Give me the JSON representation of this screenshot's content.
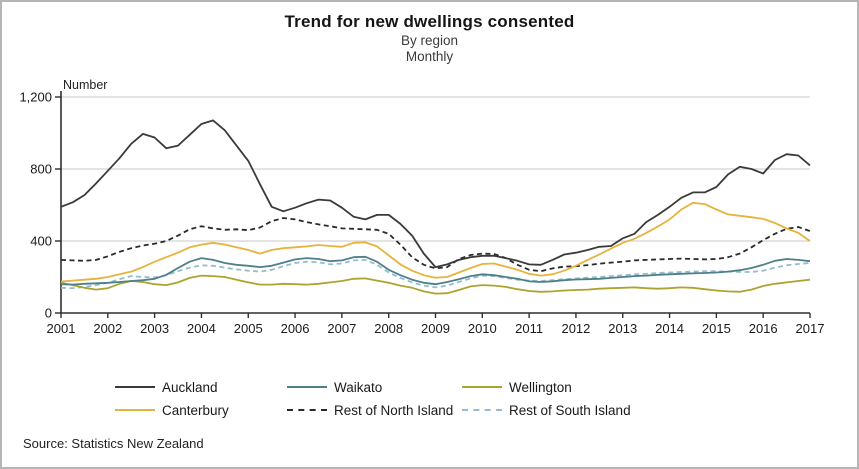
{
  "header": {
    "title": "Trend for new dwellings consented",
    "subtitle1": "By region",
    "subtitle2": "Monthly"
  },
  "footer": {
    "source": "Source: Statistics New Zealand"
  },
  "chart_data": {
    "type": "line",
    "title": "Trend for new dwellings consented",
    "subtitle": [
      "By region",
      "Monthly"
    ],
    "ylabel": "Number",
    "xlabel": "",
    "ylim": [
      0,
      1200
    ],
    "yticks": [
      0,
      400,
      800,
      1200
    ],
    "ytick_labels": [
      "0",
      "400",
      "800",
      "1,200"
    ],
    "xticks": [
      2001,
      2002,
      2003,
      2004,
      2005,
      2006,
      2007,
      2008,
      2009,
      2010,
      2011,
      2012,
      2013,
      2014,
      2015,
      2016,
      2017
    ],
    "grid": "horizontal",
    "legend_position": "bottom",
    "axis_color": "#2e2e2e",
    "grid_color": "#c9c9c9",
    "x": [
      2001,
      2001.25,
      2001.5,
      2001.75,
      2002,
      2002.25,
      2002.5,
      2002.75,
      2003,
      2003.25,
      2003.5,
      2003.75,
      2004,
      2004.25,
      2004.5,
      2004.75,
      2005,
      2005.25,
      2005.5,
      2005.75,
      2006,
      2006.25,
      2006.5,
      2006.75,
      2007,
      2007.25,
      2007.5,
      2007.75,
      2008,
      2008.25,
      2008.5,
      2008.75,
      2009,
      2009.25,
      2009.5,
      2009.75,
      2010,
      2010.25,
      2010.5,
      2010.75,
      2011,
      2011.25,
      2011.5,
      2011.75,
      2012,
      2012.25,
      2012.5,
      2012.75,
      2013,
      2013.25,
      2013.5,
      2013.75,
      2014,
      2014.25,
      2014.5,
      2014.75,
      2015,
      2015.25,
      2015.5,
      2015.75,
      2016,
      2016.25,
      2016.5,
      2016.75,
      2017
    ],
    "series": [
      {
        "name": "Auckland",
        "color": "#3a3a3a",
        "dash": false,
        "values": [
          590,
          615,
          655,
          720,
          790,
          860,
          940,
          995,
          975,
          915,
          930,
          990,
          1050,
          1070,
          1015,
          930,
          845,
          715,
          590,
          565,
          585,
          610,
          630,
          625,
          585,
          535,
          520,
          545,
          545,
          495,
          430,
          330,
          255,
          270,
          295,
          310,
          318,
          318,
          305,
          290,
          270,
          268,
          295,
          325,
          335,
          350,
          368,
          372,
          415,
          440,
          505,
          545,
          590,
          640,
          670,
          670,
          700,
          770,
          812,
          800,
          775,
          850,
          882,
          875,
          820
        ]
      },
      {
        "name": "Waikato",
        "color": "#4e7f8c",
        "dash": false,
        "values": [
          160,
          158,
          162,
          165,
          168,
          172,
          178,
          182,
          190,
          212,
          250,
          285,
          305,
          295,
          278,
          268,
          262,
          255,
          262,
          280,
          298,
          305,
          300,
          288,
          292,
          310,
          312,
          285,
          240,
          210,
          185,
          168,
          160,
          172,
          188,
          205,
          215,
          210,
          200,
          190,
          176,
          172,
          176,
          182,
          186,
          188,
          190,
          195,
          200,
          205,
          208,
          212,
          215,
          218,
          220,
          222,
          225,
          230,
          238,
          250,
          268,
          290,
          300,
          295,
          288
        ]
      },
      {
        "name": "Wellington",
        "color": "#ada32f",
        "dash": false,
        "values": [
          168,
          155,
          140,
          130,
          138,
          162,
          178,
          172,
          160,
          155,
          170,
          195,
          208,
          205,
          200,
          185,
          170,
          158,
          158,
          162,
          160,
          158,
          162,
          170,
          178,
          190,
          192,
          180,
          168,
          152,
          140,
          120,
          108,
          110,
          128,
          148,
          155,
          152,
          145,
          132,
          122,
          118,
          120,
          125,
          128,
          130,
          135,
          138,
          140,
          142,
          138,
          135,
          138,
          142,
          140,
          132,
          125,
          120,
          118,
          130,
          150,
          162,
          170,
          178,
          185
        ]
      },
      {
        "name": "Canterbury",
        "color": "#e6b33d",
        "dash": false,
        "values": [
          175,
          180,
          185,
          190,
          200,
          215,
          230,
          255,
          285,
          310,
          335,
          365,
          380,
          390,
          380,
          365,
          350,
          330,
          350,
          360,
          365,
          370,
          378,
          372,
          368,
          390,
          392,
          370,
          320,
          270,
          235,
          210,
          196,
          200,
          225,
          250,
          272,
          275,
          258,
          240,
          218,
          208,
          215,
          235,
          262,
          295,
          325,
          358,
          390,
          412,
          445,
          480,
          520,
          575,
          612,
          605,
          575,
          548,
          540,
          532,
          523,
          500,
          470,
          445,
          400
        ]
      },
      {
        "name": "Rest of North Island",
        "color": "#2a2a2a",
        "dash": true,
        "values": [
          295,
          292,
          290,
          295,
          315,
          340,
          360,
          375,
          385,
          400,
          430,
          465,
          482,
          470,
          462,
          465,
          460,
          475,
          510,
          528,
          520,
          505,
          492,
          482,
          470,
          468,
          465,
          462,
          440,
          380,
          310,
          268,
          248,
          255,
          300,
          322,
          330,
          328,
          305,
          268,
          240,
          232,
          248,
          258,
          260,
          266,
          274,
          280,
          285,
          292,
          295,
          298,
          300,
          302,
          300,
          298,
          300,
          310,
          330,
          365,
          405,
          440,
          468,
          478,
          455
        ]
      },
      {
        "name": "Rest of South Island",
        "color": "#96bccb",
        "dash": true,
        "values": [
          140,
          138,
          145,
          155,
          168,
          188,
          205,
          200,
          198,
          210,
          232,
          252,
          265,
          262,
          252,
          242,
          235,
          230,
          240,
          260,
          278,
          285,
          282,
          270,
          275,
          292,
          295,
          268,
          225,
          195,
          170,
          152,
          142,
          152,
          172,
          192,
          208,
          205,
          195,
          185,
          180,
          178,
          182,
          188,
          192,
          196,
          200,
          205,
          210,
          215,
          218,
          222,
          225,
          228,
          230,
          232,
          232,
          230,
          228,
          228,
          235,
          252,
          265,
          272,
          278
        ]
      }
    ]
  }
}
